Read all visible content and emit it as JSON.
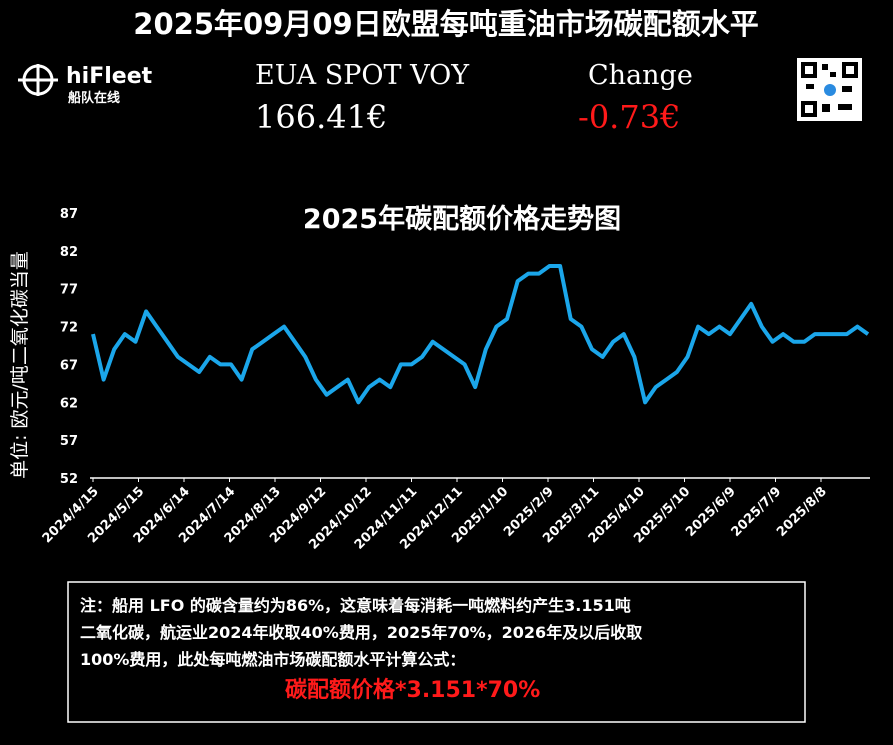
{
  "header": {
    "title": "2025年09月09日欧盟每吨重油市场碳配额水平",
    "logo": "hiFleet",
    "logo_sub": "船队在线",
    "price_label": "EUA SPOT VOY",
    "price": "166.41€",
    "change_label": "Change",
    "change": "-0.73€"
  },
  "chart_data": {
    "type": "line",
    "title": "2025年碳配额价格走势图",
    "y_label": "单位: 欧元/吨二氧化碳当量",
    "x": [
      "2024/4/15",
      "2024/4/22",
      "2024/4/29",
      "2024/5/6",
      "2024/5/13",
      "2024/5/20",
      "2024/5/27",
      "2024/6/3",
      "2024/6/10",
      "2024/6/17",
      "2024/6/24",
      "2024/7/1",
      "2024/7/8",
      "2024/7/15",
      "2024/7/22",
      "2024/7/29",
      "2024/8/5",
      "2024/8/12",
      "2024/8/19",
      "2024/8/26",
      "2024/9/2",
      "2024/9/9",
      "2024/9/16",
      "2024/9/23",
      "2024/9/30",
      "2024/10/7",
      "2024/10/14",
      "2024/10/21",
      "2024/10/28",
      "2024/11/4",
      "2024/11/11",
      "2024/11/18",
      "2024/11/25",
      "2024/12/2",
      "2024/12/9",
      "2024/12/16",
      "2024/12/23",
      "2024/12/30",
      "2025/1/6",
      "2025/1/13",
      "2025/1/20",
      "2025/1/27",
      "2025/2/3",
      "2025/2/10",
      "2025/2/17",
      "2025/2/24",
      "2025/3/3",
      "2025/3/10",
      "2025/3/17",
      "2025/3/24",
      "2025/3/31",
      "2025/4/7",
      "2025/4/14",
      "2025/4/21",
      "2025/4/28",
      "2025/5/5",
      "2025/5/12",
      "2025/5/19",
      "2025/5/26",
      "2025/6/2",
      "2025/6/9",
      "2025/6/16",
      "2025/6/23",
      "2025/6/30",
      "2025/7/7",
      "2025/7/14",
      "2025/7/21",
      "2025/7/28",
      "2025/8/4",
      "2025/8/11",
      "2025/8/18",
      "2025/8/25",
      "2025/9/1",
      "2025/9/8"
    ],
    "series": [
      {
        "name": "EUA",
        "color": "#1ba6ea",
        "values": [
          71,
          65,
          69,
          71,
          70,
          74,
          72,
          70,
          68,
          67,
          66,
          68,
          67,
          67,
          65,
          69,
          70,
          71,
          72,
          70,
          68,
          65,
          63,
          64,
          65,
          62,
          64,
          65,
          64,
          67,
          67,
          68,
          70,
          69,
          68,
          67,
          64,
          69,
          72,
          73,
          78,
          79,
          79,
          80,
          80,
          73,
          72,
          69,
          68,
          70,
          71,
          68,
          62,
          64,
          65,
          66,
          68,
          72,
          71,
          72,
          71,
          73,
          75,
          72,
          70,
          71,
          70,
          70,
          71,
          71,
          71,
          71,
          72,
          71
        ]
      }
    ],
    "xlim": [
      "2024/4/15",
      "2025/9/8"
    ],
    "xticks": [
      "2024/4/15",
      "2024/5/15",
      "2024/6/14",
      "2024/7/14",
      "2024/8/13",
      "2024/9/12",
      "2024/10/12",
      "2024/11/11",
      "2024/12/11",
      "2025/1/10",
      "2025/2/9",
      "2025/3/11",
      "2025/4/10",
      "2025/5/10",
      "2025/6/9",
      "2025/7/9",
      "2025/8/8"
    ],
    "ylim": [
      52,
      87
    ],
    "yticks": [
      52,
      57,
      62,
      67,
      72,
      77,
      82,
      87
    ],
    "grid": false
  },
  "note": {
    "lines": [
      "注：船用 LFO 的碳含量约为86%，这意味着每消耗一吨燃料约产生3.151吨",
      "二氧化碳，航运业2024年收取40%费用，2025年70%，2026年及以后收取",
      "100%费用，此处每吨燃油市场碳配额水平计算公式："
    ],
    "formula": "碳配额价格*3.151*70%"
  }
}
